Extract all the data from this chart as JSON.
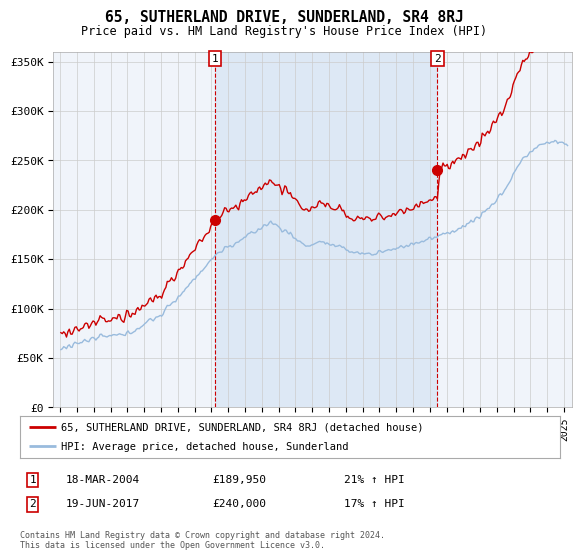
{
  "title": "65, SUTHERLAND DRIVE, SUNDERLAND, SR4 8RJ",
  "subtitle": "Price paid vs. HM Land Registry's House Price Index (HPI)",
  "legend_label_red": "65, SUTHERLAND DRIVE, SUNDERLAND, SR4 8RJ (detached house)",
  "legend_label_blue": "HPI: Average price, detached house, Sunderland",
  "sale1_date": "18-MAR-2004",
  "sale1_price": "£189,950",
  "sale1_hpi": "21% ↑ HPI",
  "sale2_date": "19-JUN-2017",
  "sale2_price": "£240,000",
  "sale2_hpi": "17% ↑ HPI",
  "footnote": "Contains HM Land Registry data © Crown copyright and database right 2024.\nThis data is licensed under the Open Government Licence v3.0.",
  "yticks": [
    0,
    50000,
    100000,
    150000,
    200000,
    250000,
    300000,
    350000
  ],
  "ytick_labels": [
    "£0",
    "£50K",
    "£100K",
    "£150K",
    "£200K",
    "£250K",
    "£300K",
    "£350K"
  ],
  "red_color": "#cc0000",
  "blue_color": "#99bbdd",
  "shade_color": "#dde8f5",
  "grid_color": "#cccccc"
}
